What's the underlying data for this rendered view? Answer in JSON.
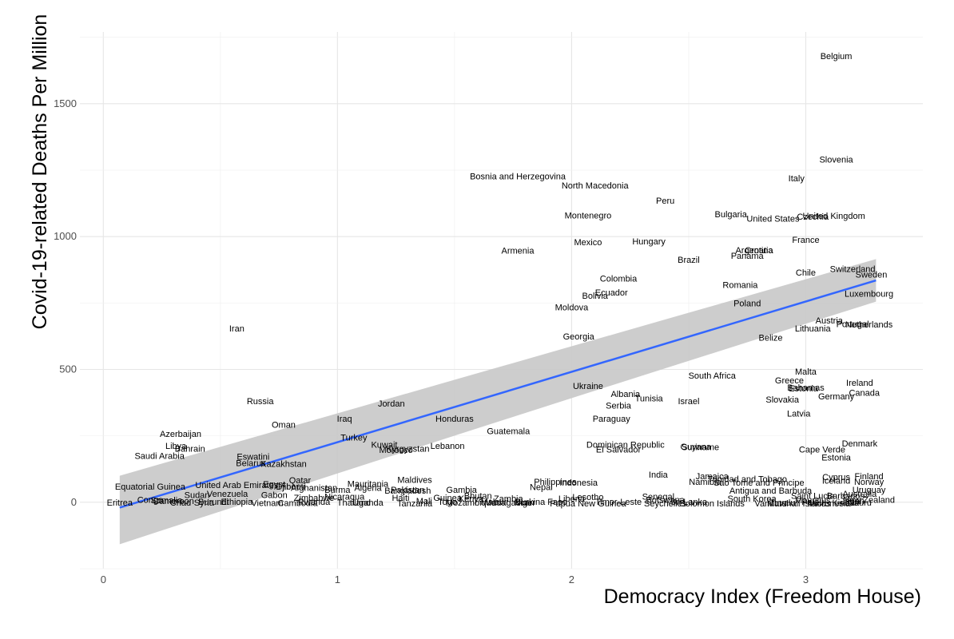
{
  "chart_data": {
    "type": "scatter",
    "xlabel": "Democracy Index (Freedom House)",
    "ylabel": "Covid-19-related Deaths Per Million",
    "xlim": [
      -0.1,
      3.5
    ],
    "ylim": [
      -250,
      1770
    ],
    "x_ticks": [
      0,
      1,
      2,
      3
    ],
    "y_ticks": [
      0,
      500,
      1000,
      1500
    ],
    "x_tick_labels": [
      "0",
      "1",
      "2",
      "3"
    ],
    "y_tick_labels": [
      "0",
      "500",
      "1000",
      "1500"
    ],
    "grid": true,
    "point_style": "text-labels",
    "fit": {
      "method": "linear",
      "x_range": [
        0.07,
        3.3
      ],
      "y_start": -20,
      "y_end": 835,
      "ci_low": [
        -158,
        755
      ],
      "ci_high": [
        100,
        915
      ],
      "line_color": "#3366ff",
      "band_color": "#c8c8c8"
    },
    "points": [
      {
        "label": "Belgium",
        "x": 3.13,
        "y": 1680
      },
      {
        "label": "Slovenia",
        "x": 3.13,
        "y": 1290
      },
      {
        "label": "Italy",
        "x": 2.96,
        "y": 1220
      },
      {
        "label": "Bosnia and Herzegovina",
        "x": 1.77,
        "y": 1227
      },
      {
        "label": "North Macedonia",
        "x": 2.1,
        "y": 1193
      },
      {
        "label": "Peru",
        "x": 2.4,
        "y": 1135
      },
      {
        "label": "Bulgaria",
        "x": 2.68,
        "y": 1085
      },
      {
        "label": "United States",
        "x": 2.86,
        "y": 1068
      },
      {
        "label": "Czechia",
        "x": 3.03,
        "y": 1075
      },
      {
        "label": "United Kingdom",
        "x": 3.12,
        "y": 1078
      },
      {
        "label": "Montenegro",
        "x": 2.07,
        "y": 1080
      },
      {
        "label": "Mexico",
        "x": 2.07,
        "y": 980
      },
      {
        "label": "Hungary",
        "x": 2.33,
        "y": 983
      },
      {
        "label": "France",
        "x": 3.0,
        "y": 988
      },
      {
        "label": "Argentina",
        "x": 2.78,
        "y": 950
      },
      {
        "label": "Croatia",
        "x": 2.8,
        "y": 950
      },
      {
        "label": "Panama",
        "x": 2.75,
        "y": 928
      },
      {
        "label": "Armenia",
        "x": 1.77,
        "y": 948
      },
      {
        "label": "Brazil",
        "x": 2.5,
        "y": 913
      },
      {
        "label": "Switzerland",
        "x": 3.2,
        "y": 878
      },
      {
        "label": "Chile",
        "x": 3.0,
        "y": 865
      },
      {
        "label": "Sweden",
        "x": 3.28,
        "y": 858
      },
      {
        "label": "Colombia",
        "x": 2.2,
        "y": 842
      },
      {
        "label": "Romania",
        "x": 2.72,
        "y": 818
      },
      {
        "label": "Ecuador",
        "x": 2.17,
        "y": 790
      },
      {
        "label": "Bolivia",
        "x": 2.1,
        "y": 778
      },
      {
        "label": "Luxembourg",
        "x": 3.27,
        "y": 785
      },
      {
        "label": "Poland",
        "x": 2.75,
        "y": 750
      },
      {
        "label": "Moldova",
        "x": 2.0,
        "y": 735
      },
      {
        "label": "Austria",
        "x": 3.1,
        "y": 685
      },
      {
        "label": "Portugal",
        "x": 3.2,
        "y": 672
      },
      {
        "label": "Netherlands",
        "x": 3.27,
        "y": 670
      },
      {
        "label": "Lithuania",
        "x": 3.03,
        "y": 655
      },
      {
        "label": "Iran",
        "x": 0.57,
        "y": 655
      },
      {
        "label": "Georgia",
        "x": 2.03,
        "y": 625
      },
      {
        "label": "Belize",
        "x": 2.85,
        "y": 620
      },
      {
        "label": "Malta",
        "x": 3.0,
        "y": 492
      },
      {
        "label": "South Africa",
        "x": 2.6,
        "y": 478
      },
      {
        "label": "Greece",
        "x": 2.93,
        "y": 460
      },
      {
        "label": "Ireland",
        "x": 3.23,
        "y": 450
      },
      {
        "label": "Bahamas",
        "x": 3.0,
        "y": 432
      },
      {
        "label": "Estonia",
        "x": 2.99,
        "y": 430
      },
      {
        "label": "Ukraine",
        "x": 2.07,
        "y": 438
      },
      {
        "label": "Canada",
        "x": 3.25,
        "y": 413
      },
      {
        "label": "Germany",
        "x": 3.13,
        "y": 400
      },
      {
        "label": "Albania",
        "x": 2.23,
        "y": 408
      },
      {
        "label": "Tunisia",
        "x": 2.33,
        "y": 392
      },
      {
        "label": "Slovakia",
        "x": 2.9,
        "y": 388
      },
      {
        "label": "Israel",
        "x": 2.5,
        "y": 382
      },
      {
        "label": "Serbia",
        "x": 2.2,
        "y": 365
      },
      {
        "label": "Russia",
        "x": 0.67,
        "y": 382
      },
      {
        "label": "Jordan",
        "x": 1.23,
        "y": 372
      },
      {
        "label": "Latvia",
        "x": 2.97,
        "y": 335
      },
      {
        "label": "Iraq",
        "x": 1.03,
        "y": 315
      },
      {
        "label": "Honduras",
        "x": 1.5,
        "y": 315
      },
      {
        "label": "Paraguay",
        "x": 2.17,
        "y": 315
      },
      {
        "label": "Oman",
        "x": 0.77,
        "y": 292
      },
      {
        "label": "Guatemala",
        "x": 1.73,
        "y": 268
      },
      {
        "label": "Azerbaijan",
        "x": 0.33,
        "y": 258
      },
      {
        "label": "Turkey",
        "x": 1.07,
        "y": 245
      },
      {
        "label": "Denmark",
        "x": 3.23,
        "y": 222
      },
      {
        "label": "Dominican Republic",
        "x": 2.23,
        "y": 218
      },
      {
        "label": "Guyana",
        "x": 2.53,
        "y": 210
      },
      {
        "label": "Suriname",
        "x": 2.55,
        "y": 208
      },
      {
        "label": "Cape Verde",
        "x": 3.07,
        "y": 200
      },
      {
        "label": "El Salvador",
        "x": 2.2,
        "y": 200
      },
      {
        "label": "Kuwait",
        "x": 1.2,
        "y": 218
      },
      {
        "label": "Lebanon",
        "x": 1.47,
        "y": 213
      },
      {
        "label": "Libya",
        "x": 0.31,
        "y": 213
      },
      {
        "label": "Bahrain",
        "x": 0.37,
        "y": 203
      },
      {
        "label": "Morocco",
        "x": 1.25,
        "y": 198
      },
      {
        "label": "Kyrgyzstan",
        "x": 1.3,
        "y": 203
      },
      {
        "label": "Saudi Arabia",
        "x": 0.24,
        "y": 175
      },
      {
        "label": "Estonia",
        "x": 3.13,
        "y": 170
      },
      {
        "label": "Eswatini",
        "x": 0.64,
        "y": 173
      },
      {
        "label": "Belarus",
        "x": 0.63,
        "y": 148
      },
      {
        "label": "Kazakhstan",
        "x": 0.77,
        "y": 145
      },
      {
        "label": "India",
        "x": 2.37,
        "y": 105
      },
      {
        "label": "Jamaica",
        "x": 2.6,
        "y": 98
      },
      {
        "label": "Cyprus",
        "x": 3.13,
        "y": 95
      },
      {
        "label": "Finland",
        "x": 3.27,
        "y": 98
      },
      {
        "label": "Trinidad and Tobago",
        "x": 2.75,
        "y": 88
      },
      {
        "label": "Iceland",
        "x": 3.13,
        "y": 82
      },
      {
        "label": "Norway",
        "x": 3.27,
        "y": 78
      },
      {
        "label": "Namibia",
        "x": 2.57,
        "y": 78
      },
      {
        "label": "Sao Tome and Principe",
        "x": 2.8,
        "y": 75
      },
      {
        "label": "Philippines",
        "x": 1.93,
        "y": 78
      },
      {
        "label": "Indonesia",
        "x": 2.03,
        "y": 75
      },
      {
        "label": "Maldives",
        "x": 1.33,
        "y": 85
      },
      {
        "label": "Qatar",
        "x": 0.84,
        "y": 83
      },
      {
        "label": "Mauritania",
        "x": 1.13,
        "y": 70
      },
      {
        "label": "Nepal",
        "x": 1.87,
        "y": 58
      },
      {
        "label": "Antigua and Barbuda",
        "x": 2.85,
        "y": 45
      },
      {
        "label": "Uruguay",
        "x": 3.27,
        "y": 48
      },
      {
        "label": "Australia",
        "x": 3.23,
        "y": 33
      },
      {
        "label": "Saint Lucia",
        "x": 3.03,
        "y": 25
      },
      {
        "label": "Barbados",
        "x": 3.17,
        "y": 25
      },
      {
        "label": "New Zealand",
        "x": 3.27,
        "y": 10
      },
      {
        "label": "Equatorial Guinea",
        "x": 0.2,
        "y": 60
      },
      {
        "label": "United Arab Emirates",
        "x": 0.57,
        "y": 65
      },
      {
        "label": "Egypt",
        "x": 0.73,
        "y": 68
      },
      {
        "label": "Djibouti",
        "x": 0.8,
        "y": 60
      },
      {
        "label": "Afghanistan",
        "x": 0.9,
        "y": 55
      },
      {
        "label": "Burma",
        "x": 1.0,
        "y": 48
      },
      {
        "label": "Algeria",
        "x": 1.13,
        "y": 55
      },
      {
        "label": "Pakistan",
        "x": 1.3,
        "y": 48
      },
      {
        "label": "Bangladesh",
        "x": 1.3,
        "y": 45
      },
      {
        "label": "Gambia",
        "x": 1.53,
        "y": 48
      },
      {
        "label": "Sudan",
        "x": 0.4,
        "y": 28
      },
      {
        "label": "Venezuela",
        "x": 0.53,
        "y": 33
      },
      {
        "label": "Gabon",
        "x": 0.73,
        "y": 28
      },
      {
        "label": "Zimbabwe",
        "x": 0.9,
        "y": 18
      },
      {
        "label": "Nicaragua",
        "x": 1.03,
        "y": 22
      },
      {
        "label": "Haiti",
        "x": 1.27,
        "y": 18
      },
      {
        "label": "Guinea",
        "x": 1.47,
        "y": 18
      },
      {
        "label": "Bhutan",
        "x": 1.6,
        "y": 25
      },
      {
        "label": "Kenya",
        "x": 1.57,
        "y": 15
      },
      {
        "label": "Zambia",
        "x": 1.73,
        "y": 15
      },
      {
        "label": "Liberia",
        "x": 2.0,
        "y": 15
      },
      {
        "label": "Lesotho",
        "x": 2.07,
        "y": 20
      },
      {
        "label": "Senegal",
        "x": 2.37,
        "y": 22
      },
      {
        "label": "Botswana",
        "x": 2.4,
        "y": 10
      },
      {
        "label": "South Korea",
        "x": 2.77,
        "y": 15
      },
      {
        "label": "Mauritius",
        "x": 3.03,
        "y": 8
      },
      {
        "label": "Eritrea",
        "x": 0.07,
        "y": 0
      },
      {
        "label": "Congo",
        "x": 0.2,
        "y": 10
      },
      {
        "label": "Somalia",
        "x": 0.27,
        "y": 8
      },
      {
        "label": "Cameroon",
        "x": 0.3,
        "y": 5
      },
      {
        "label": "Chad",
        "x": 0.33,
        "y": 0
      },
      {
        "label": "Syria",
        "x": 0.43,
        "y": 0
      },
      {
        "label": "Burundi",
        "x": 0.47,
        "y": 3
      },
      {
        "label": "Ethiopia",
        "x": 0.57,
        "y": 3
      },
      {
        "label": "Vietnam",
        "x": 0.7,
        "y": -2
      },
      {
        "label": "Cambodia",
        "x": 0.83,
        "y": -2
      },
      {
        "label": "Rwanda",
        "x": 0.9,
        "y": 3
      },
      {
        "label": "Thailand",
        "x": 1.07,
        "y": 0
      },
      {
        "label": "Uganda",
        "x": 1.13,
        "y": 0
      },
      {
        "label": "Tanzania",
        "x": 1.33,
        "y": -3
      },
      {
        "label": "Mali",
        "x": 1.37,
        "y": 5
      },
      {
        "label": "Togo",
        "x": 1.47,
        "y": 3
      },
      {
        "label": "Mozambique",
        "x": 1.57,
        "y": 0
      },
      {
        "label": "Malawi",
        "x": 1.67,
        "y": 3
      },
      {
        "label": "Madagascar",
        "x": 1.73,
        "y": 0
      },
      {
        "label": "Niger",
        "x": 1.8,
        "y": 0
      },
      {
        "label": "Burkina Faso",
        "x": 1.87,
        "y": 3
      },
      {
        "label": "Papua New Guinea",
        "x": 2.07,
        "y": -3
      },
      {
        "label": "Timor-Leste",
        "x": 2.2,
        "y": 3
      },
      {
        "label": "Seychelles",
        "x": 2.4,
        "y": -3
      },
      {
        "label": "Solomon Islands",
        "x": 2.6,
        "y": -3
      },
      {
        "label": "Sri Lanka",
        "x": 2.5,
        "y": 3
      },
      {
        "label": "Vanuatu",
        "x": 2.85,
        "y": -3
      },
      {
        "label": "Tuvalu",
        "x": 2.9,
        "y": 0
      },
      {
        "label": "Marshall Islands",
        "x": 2.97,
        "y": -3
      },
      {
        "label": "Palau",
        "x": 3.03,
        "y": 3
      },
      {
        "label": "Micronesia",
        "x": 3.1,
        "y": -3
      },
      {
        "label": "Kiribati",
        "x": 3.17,
        "y": 0
      },
      {
        "label": "Japan",
        "x": 3.2,
        "y": 5
      },
      {
        "label": "Nauru",
        "x": 3.23,
        "y": 0
      }
    ]
  }
}
